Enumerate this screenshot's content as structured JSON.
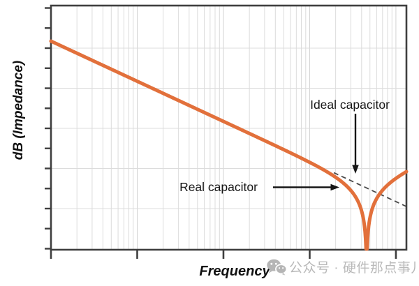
{
  "colors": {
    "background": "#ffffff",
    "curve": "#e2703b",
    "axis": "#3f3f3f",
    "grid_minor": "#dcdcdc",
    "grid_major": "#d2d2d2",
    "dashed": "#4a4a4a",
    "annotation": "#161616",
    "watermark": "#b9b9b9"
  },
  "labels": {
    "y_axis": "dB (Impedance)",
    "x_axis": "Frequency"
  },
  "watermark": {
    "icon": "wechat-icon",
    "text": "公众号 · 硬件那点事儿"
  },
  "chart_data": {
    "type": "line",
    "title": "",
    "xlabel": "Frequency",
    "ylabel": "dB (Impedance)",
    "grid": true,
    "legend": "none",
    "x_axis": {
      "scale": "log",
      "decades_shown": 4.122,
      "major_tick_decades": [
        0,
        1,
        2,
        3,
        4
      ],
      "minor_gridlines": "log positions 2-9 within each decade",
      "tick_labels": "none"
    },
    "y_axis": {
      "scale": "linear-dB",
      "gridline_spacing_db": 20,
      "gridline_count": 5,
      "tick_count": 13,
      "tick_labels": "none"
    },
    "series": [
      {
        "name": "Real capacitor",
        "style": "solid",
        "model": "series LC impedance: dB = -20*log10-slope below resonance, sharp notch to plot floor at resonance, +20 dB/decade rise above",
        "start_db": 0,
        "slope_db_per_decade_below_resonance": -20,
        "slope_db_per_decade_above_resonance": 20,
        "resonance_decade": 3.66,
        "notch_depth": "reaches bottom axis (plot floor)",
        "end_decade": 4.122
      },
      {
        "name": "Ideal capacitor",
        "style": "dashed",
        "start_db": 0,
        "slope_db_per_decade": -20,
        "shown_from_decade": 3.28,
        "shown_to_decade": 4.122
      }
    ],
    "annotations": [
      {
        "text": "Ideal capacitor",
        "arrow": "down",
        "points_to": "dashed ideal-capacitor extension line"
      },
      {
        "text": "Real capacitor",
        "arrow": "right",
        "points_to": "solid curve just before resonance notch"
      }
    ]
  }
}
